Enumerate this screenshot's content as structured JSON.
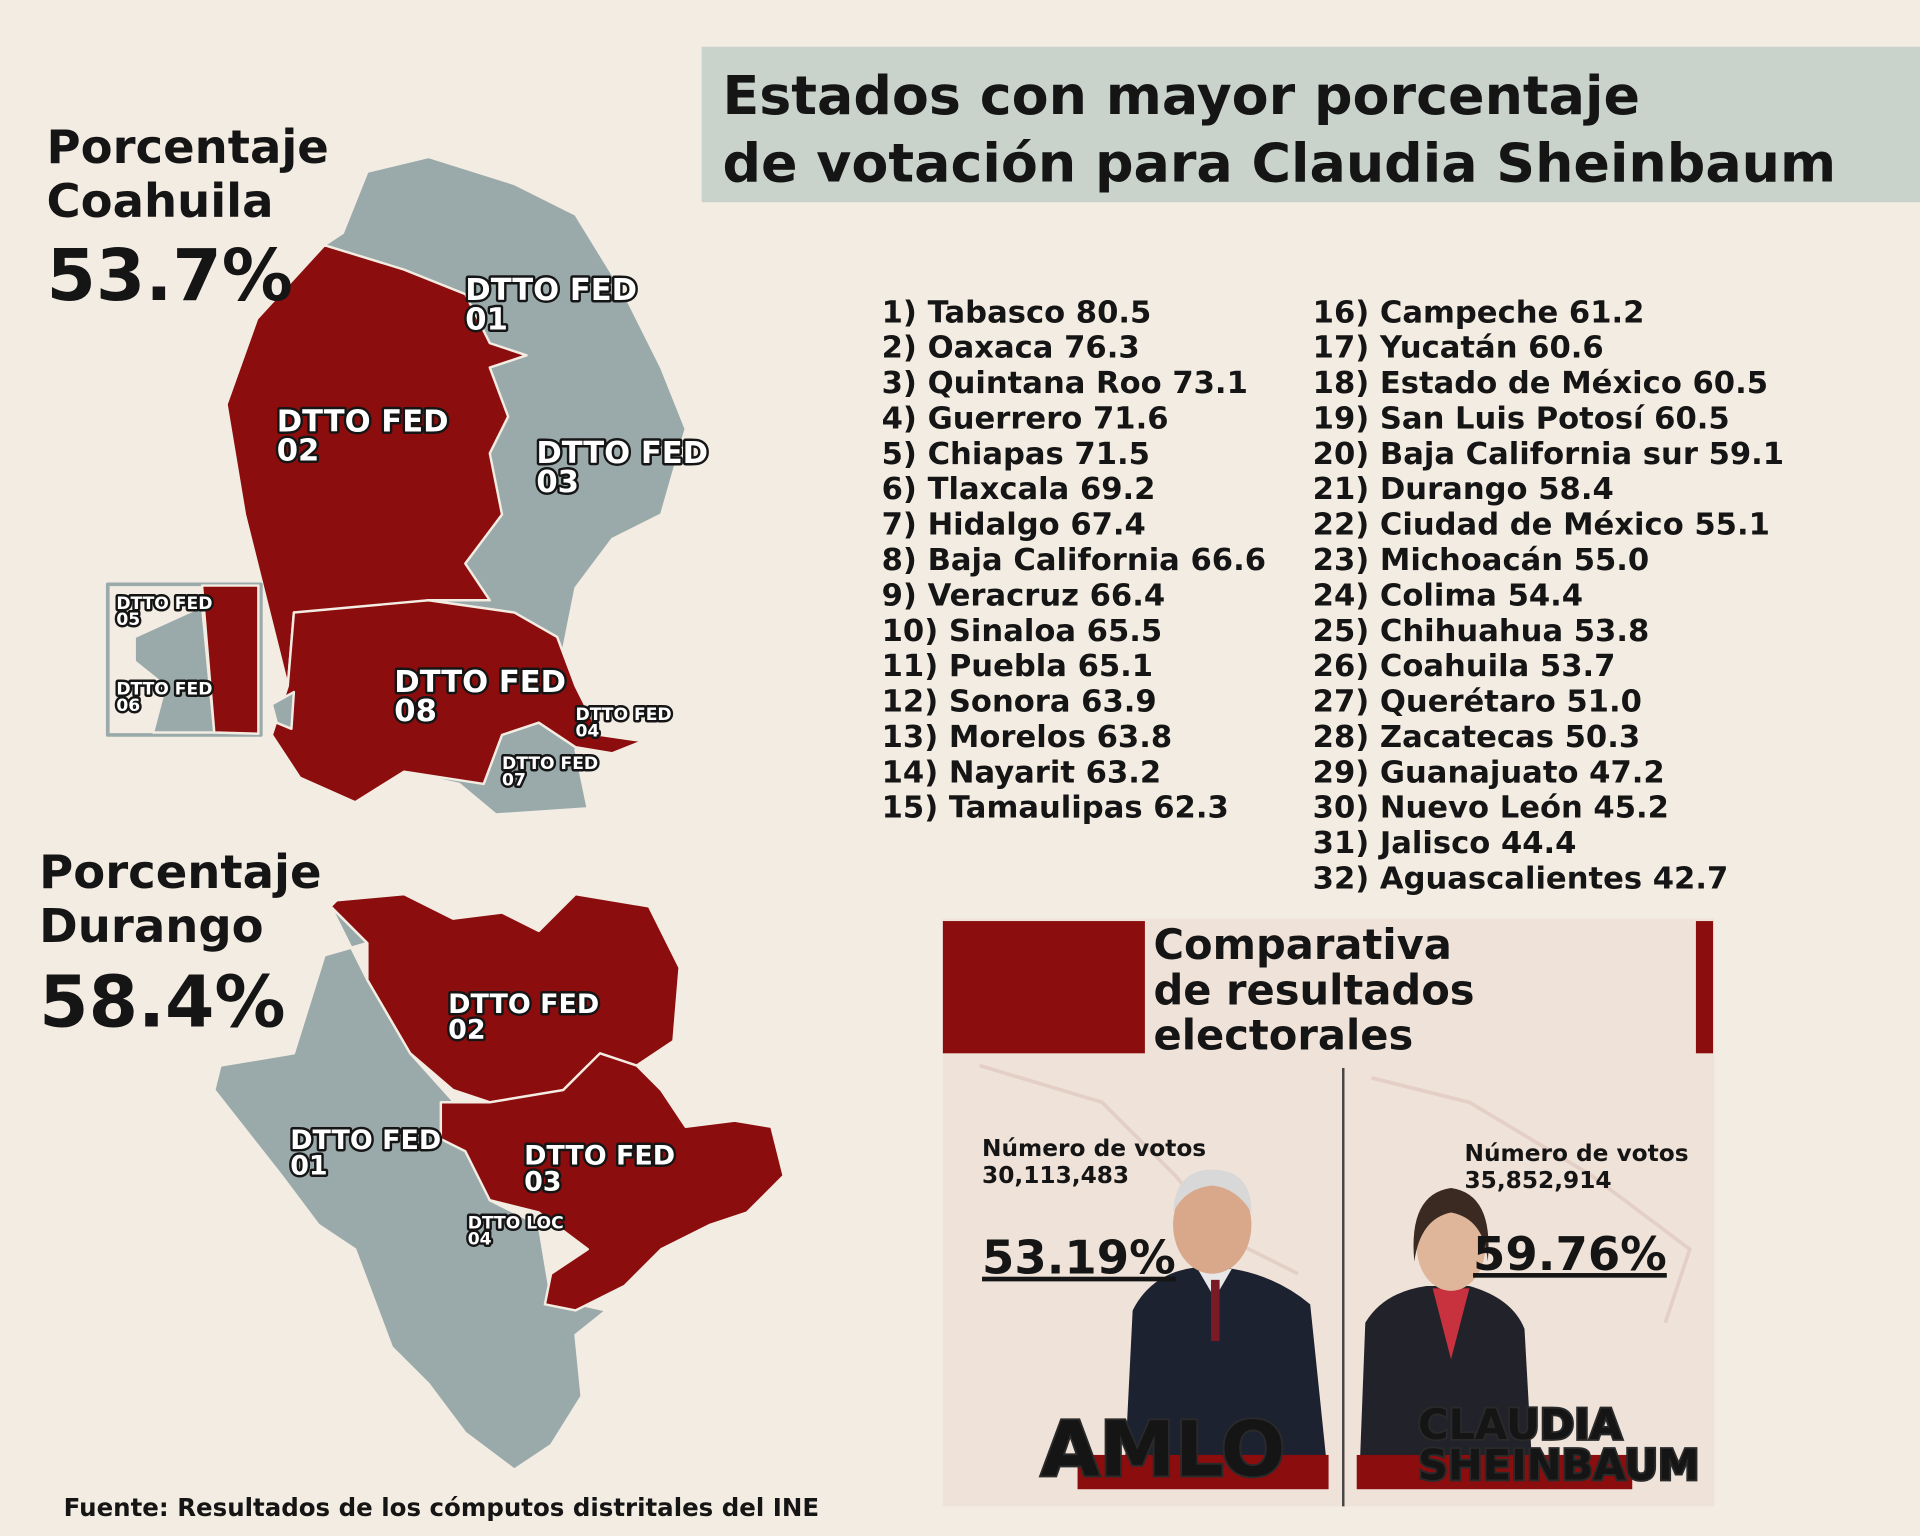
{
  "title": [
    "Estados con mayor porcentaje",
    "de votación para Claudia Sheinbaum"
  ],
  "coahuila": {
    "heading": [
      "Porcentaje",
      "Coahuila"
    ],
    "percent": "53.7%",
    "districts": [
      {
        "label": "DTTO FED",
        "number": "01"
      },
      {
        "label": "DTTO FED",
        "number": "02"
      },
      {
        "label": "DTTO FED",
        "number": "03"
      },
      {
        "label": "DTTO FED",
        "number": "08"
      },
      {
        "label": "DTTO FED",
        "number": "04"
      },
      {
        "label": "DTTO FED",
        "number": "07"
      },
      {
        "label": "DTTO FED",
        "number": "05"
      },
      {
        "label": "DTTO FED",
        "number": "06"
      }
    ]
  },
  "durango": {
    "heading": [
      "Porcentaje",
      "Durango"
    ],
    "percent": "58.4%",
    "districts": [
      {
        "label": "DTTO FED",
        "number": "02"
      },
      {
        "label": "DTTO FED",
        "number": "01"
      },
      {
        "label": "DTTO FED",
        "number": "03"
      },
      {
        "label": "DTTO LOC",
        "number": "04"
      }
    ]
  },
  "ranking": {
    "left": [
      "1) Tabasco 80.5",
      "2) Oaxaca 76.3",
      "3) Quintana Roo 73.1",
      "4) Guerrero 71.6",
      "5) Chiapas 71.5",
      "6) Tlaxcala 69.2",
      "7) Hidalgo 67.4",
      "8) Baja California 66.6",
      "9) Veracruz 66.4",
      "10) Sinaloa 65.5",
      "11) Puebla 65.1",
      "12) Sonora 63.9",
      "13) Morelos 63.8",
      "14) Nayarit 63.2",
      "15) Tamaulipas 62.3"
    ],
    "right": [
      "16) Campeche 61.2",
      "17) Yucatán 60.6",
      "18) Estado de México 60.5",
      "19) San Luis Potosí 60.5",
      "20) Baja California sur 59.1",
      "21) Durango 58.4",
      "22) Ciudad de México 55.1",
      "23) Michoacán 55.0",
      "24) Colima 54.4",
      "25) Chihuahua 53.8",
      "26) Coahuila 53.7",
      "27) Querétaro 51.0",
      "28) Zacatecas 50.3",
      "29) Guanajuato 47.2",
      "30) Nuevo León 45.2",
      "31) Jalisco 44.4",
      "32) Aguascalientes 42.7"
    ]
  },
  "comparison": {
    "title": [
      "Comparativa",
      "de resultados",
      "electorales"
    ],
    "candidates": [
      {
        "votes_label": "Número de votos",
        "votes": "30,113,483",
        "percent": "53.19%",
        "name": [
          "AMLO"
        ]
      },
      {
        "votes_label": "Número de votos",
        "votes": "35,852,914",
        "percent": "59.76%",
        "name": [
          "CLAUDIA",
          "SHEINBAUM"
        ]
      }
    ]
  },
  "source": "Fuente: Resultados de los cómputos distritales del INE"
}
